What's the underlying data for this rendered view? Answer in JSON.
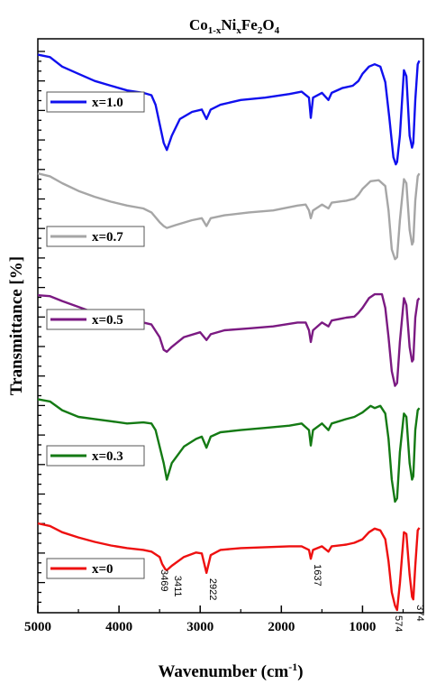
{
  "chart_data": {
    "type": "line",
    "title": {
      "main": "Co",
      "sub1": "1-x",
      "mid1": "Ni",
      "sub2": "x",
      "mid2": "Fe",
      "sub3": "2",
      "mid3": "O",
      "sub4": "4"
    },
    "xlabel": {
      "main": "Wavenumber (cm",
      "sup": "-1",
      "end": ")"
    },
    "ylabel": "Transmittance [%]",
    "xlim": [
      5000,
      250
    ],
    "x_ticks": [
      5000,
      4000,
      3000,
      2000,
      1000
    ],
    "x_tick_labels": [
      "5000",
      "4000",
      "3000",
      "2000",
      "1000"
    ],
    "grid": false,
    "legend": "left, one box per curve",
    "series": [
      {
        "name": "x=1.0",
        "color": "#1010ee",
        "offset": 4,
        "points": [
          [
            5000,
            98
          ],
          [
            4850,
            96
          ],
          [
            4700,
            88
          ],
          [
            4500,
            82
          ],
          [
            4300,
            76
          ],
          [
            4100,
            72
          ],
          [
            3900,
            68
          ],
          [
            3700,
            66
          ],
          [
            3600,
            64
          ],
          [
            3550,
            56
          ],
          [
            3500,
            40
          ],
          [
            3450,
            24
          ],
          [
            3411,
            18
          ],
          [
            3350,
            30
          ],
          [
            3250,
            44
          ],
          [
            3100,
            50
          ],
          [
            2980,
            52
          ],
          [
            2922,
            44
          ],
          [
            2870,
            52
          ],
          [
            2750,
            56
          ],
          [
            2500,
            60
          ],
          [
            2200,
            62
          ],
          [
            1900,
            65
          ],
          [
            1750,
            67
          ],
          [
            1660,
            62
          ],
          [
            1637,
            45
          ],
          [
            1610,
            62
          ],
          [
            1500,
            66
          ],
          [
            1420,
            60
          ],
          [
            1380,
            66
          ],
          [
            1250,
            70
          ],
          [
            1120,
            72
          ],
          [
            1050,
            76
          ],
          [
            1000,
            82
          ],
          [
            920,
            88
          ],
          [
            850,
            90
          ],
          [
            780,
            88
          ],
          [
            720,
            75
          ],
          [
            670,
            45
          ],
          [
            620,
            12
          ],
          [
            590,
            6
          ],
          [
            574,
            8
          ],
          [
            540,
            30
          ],
          [
            490,
            85
          ],
          [
            460,
            80
          ],
          [
            420,
            30
          ],
          [
            390,
            20
          ],
          [
            374,
            24
          ],
          [
            350,
            60
          ],
          [
            320,
            90
          ],
          [
            300,
            93
          ]
        ]
      },
      {
        "name": "x=0.7",
        "color": "#a6a6a6",
        "offset": 3,
        "points": [
          [
            5000,
            98
          ],
          [
            4850,
            95
          ],
          [
            4700,
            88
          ],
          [
            4500,
            80
          ],
          [
            4300,
            74
          ],
          [
            4100,
            69
          ],
          [
            3900,
            65
          ],
          [
            3700,
            62
          ],
          [
            3600,
            58
          ],
          [
            3500,
            48
          ],
          [
            3450,
            44
          ],
          [
            3411,
            42
          ],
          [
            3300,
            45
          ],
          [
            3100,
            50
          ],
          [
            2980,
            52
          ],
          [
            2922,
            44
          ],
          [
            2870,
            52
          ],
          [
            2700,
            55
          ],
          [
            2400,
            58
          ],
          [
            2100,
            60
          ],
          [
            1800,
            65
          ],
          [
            1700,
            66
          ],
          [
            1660,
            60
          ],
          [
            1637,
            52
          ],
          [
            1610,
            60
          ],
          [
            1500,
            66
          ],
          [
            1420,
            62
          ],
          [
            1380,
            68
          ],
          [
            1200,
            70
          ],
          [
            1100,
            72
          ],
          [
            1050,
            76
          ],
          [
            1000,
            82
          ],
          [
            900,
            90
          ],
          [
            800,
            91
          ],
          [
            720,
            85
          ],
          [
            680,
            60
          ],
          [
            640,
            20
          ],
          [
            600,
            10
          ],
          [
            574,
            12
          ],
          [
            540,
            50
          ],
          [
            490,
            92
          ],
          [
            460,
            88
          ],
          [
            420,
            40
          ],
          [
            390,
            25
          ],
          [
            374,
            28
          ],
          [
            350,
            70
          ],
          [
            320,
            95
          ],
          [
            300,
            98
          ]
        ]
      },
      {
        "name": "x=0.5",
        "color": "#7b1a82",
        "offset": 2,
        "points": [
          [
            5000,
            98
          ],
          [
            4850,
            97
          ],
          [
            4700,
            92
          ],
          [
            4500,
            86
          ],
          [
            4300,
            80
          ],
          [
            4100,
            76
          ],
          [
            3900,
            72
          ],
          [
            3700,
            70
          ],
          [
            3600,
            68
          ],
          [
            3500,
            55
          ],
          [
            3450,
            42
          ],
          [
            3411,
            40
          ],
          [
            3350,
            45
          ],
          [
            3200,
            55
          ],
          [
            3000,
            60
          ],
          [
            2922,
            52
          ],
          [
            2870,
            58
          ],
          [
            2700,
            62
          ],
          [
            2400,
            64
          ],
          [
            2100,
            66
          ],
          [
            1800,
            70
          ],
          [
            1700,
            70
          ],
          [
            1660,
            62
          ],
          [
            1637,
            50
          ],
          [
            1610,
            62
          ],
          [
            1500,
            70
          ],
          [
            1420,
            66
          ],
          [
            1380,
            72
          ],
          [
            1200,
            75
          ],
          [
            1100,
            76
          ],
          [
            1050,
            80
          ],
          [
            1000,
            85
          ],
          [
            920,
            95
          ],
          [
            850,
            99
          ],
          [
            760,
            99
          ],
          [
            720,
            85
          ],
          [
            680,
            55
          ],
          [
            640,
            20
          ],
          [
            600,
            5
          ],
          [
            574,
            8
          ],
          [
            540,
            50
          ],
          [
            490,
            95
          ],
          [
            460,
            88
          ],
          [
            420,
            45
          ],
          [
            390,
            30
          ],
          [
            374,
            32
          ],
          [
            350,
            75
          ],
          [
            320,
            93
          ],
          [
            300,
            95
          ]
        ]
      },
      {
        "name": "x=0.3",
        "color": "#147a14",
        "offset": 1,
        "points": [
          [
            5000,
            98
          ],
          [
            4850,
            96
          ],
          [
            4700,
            88
          ],
          [
            4500,
            82
          ],
          [
            4300,
            80
          ],
          [
            4100,
            78
          ],
          [
            3900,
            76
          ],
          [
            3700,
            77
          ],
          [
            3600,
            76
          ],
          [
            3550,
            70
          ],
          [
            3500,
            55
          ],
          [
            3450,
            40
          ],
          [
            3411,
            25
          ],
          [
            3350,
            40
          ],
          [
            3200,
            55
          ],
          [
            3050,
            62
          ],
          [
            2980,
            64
          ],
          [
            2922,
            54
          ],
          [
            2870,
            64
          ],
          [
            2750,
            68
          ],
          [
            2500,
            70
          ],
          [
            2200,
            72
          ],
          [
            1900,
            74
          ],
          [
            1750,
            76
          ],
          [
            1660,
            70
          ],
          [
            1637,
            56
          ],
          [
            1610,
            70
          ],
          [
            1500,
            76
          ],
          [
            1420,
            70
          ],
          [
            1380,
            76
          ],
          [
            1200,
            80
          ],
          [
            1100,
            82
          ],
          [
            1000,
            86
          ],
          [
            900,
            92
          ],
          [
            850,
            90
          ],
          [
            780,
            92
          ],
          [
            720,
            85
          ],
          [
            680,
            62
          ],
          [
            640,
            25
          ],
          [
            600,
            5
          ],
          [
            574,
            8
          ],
          [
            540,
            50
          ],
          [
            490,
            85
          ],
          [
            460,
            82
          ],
          [
            420,
            40
          ],
          [
            390,
            25
          ],
          [
            374,
            28
          ],
          [
            350,
            70
          ],
          [
            320,
            88
          ],
          [
            300,
            90
          ]
        ]
      },
      {
        "name": "x=0",
        "color": "#ee1010",
        "offset": 0,
        "points": [
          [
            5000,
            98
          ],
          [
            4850,
            95
          ],
          [
            4700,
            88
          ],
          [
            4500,
            82
          ],
          [
            4300,
            77
          ],
          [
            4100,
            73
          ],
          [
            3900,
            70
          ],
          [
            3700,
            68
          ],
          [
            3600,
            66
          ],
          [
            3500,
            60
          ],
          [
            3469,
            52
          ],
          [
            3430,
            46
          ],
          [
            3411,
            45
          ],
          [
            3350,
            50
          ],
          [
            3200,
            60
          ],
          [
            3050,
            65
          ],
          [
            2980,
            64
          ],
          [
            2922,
            42
          ],
          [
            2870,
            62
          ],
          [
            2750,
            68
          ],
          [
            2500,
            70
          ],
          [
            2200,
            71
          ],
          [
            1900,
            72
          ],
          [
            1750,
            72
          ],
          [
            1660,
            68
          ],
          [
            1637,
            58
          ],
          [
            1610,
            68
          ],
          [
            1500,
            72
          ],
          [
            1420,
            66
          ],
          [
            1380,
            72
          ],
          [
            1200,
            74
          ],
          [
            1100,
            76
          ],
          [
            1000,
            80
          ],
          [
            920,
            88
          ],
          [
            850,
            92
          ],
          [
            780,
            90
          ],
          [
            720,
            80
          ],
          [
            680,
            55
          ],
          [
            640,
            20
          ],
          [
            600,
            5
          ],
          [
            574,
            0
          ],
          [
            540,
            30
          ],
          [
            490,
            88
          ],
          [
            460,
            86
          ],
          [
            420,
            40
          ],
          [
            390,
            15
          ],
          [
            374,
            12
          ],
          [
            350,
            50
          ],
          [
            320,
            90
          ],
          [
            300,
            93
          ]
        ]
      }
    ],
    "annotations": [
      {
        "label": "3469",
        "x": 3469,
        "series": 4
      },
      {
        "label": "3411",
        "x": 3411,
        "series": 4
      },
      {
        "label": "2922",
        "x": 2922,
        "series": 4
      },
      {
        "label": "1637",
        "x": 1637,
        "series": 4
      },
      {
        "label": "574",
        "x": 574,
        "series": 4
      },
      {
        "label": "374",
        "x": 374,
        "series": 4
      }
    ]
  }
}
